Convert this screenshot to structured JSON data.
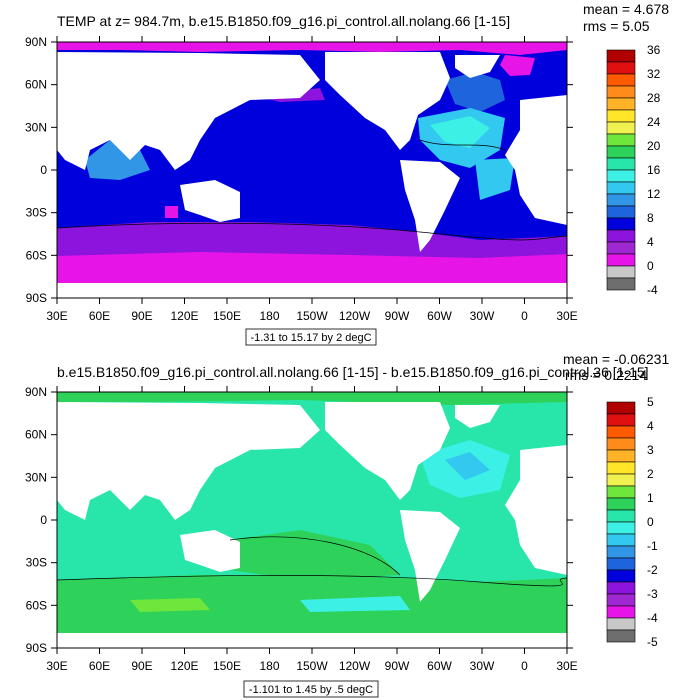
{
  "chart_data": [
    {
      "type": "heatmap",
      "title": "TEMP at z= 984.7m, b.e15.B1850.f09_g16.pi_control.all.nolang.66 [1-15]",
      "stats": {
        "mean": "mean = 4.678",
        "rms": "rms = 5.05"
      },
      "x_ticks": [
        "30E",
        "60E",
        "90E",
        "120E",
        "150E",
        "180",
        "150W",
        "120W",
        "90W",
        "60W",
        "30W",
        "0",
        "30E"
      ],
      "y_ticks": [
        "90N",
        "60N",
        "30N",
        "0",
        "30S",
        "60S",
        "90S"
      ],
      "contour_info": "-1.31 to 15.17 by 2 degC",
      "colorbar": {
        "labels": [
          "36",
          "32",
          "28",
          "24",
          "20",
          "16",
          "12",
          "8",
          "4",
          "0",
          "-4"
        ],
        "colors": [
          "#b00000",
          "#e01010",
          "#ff5a00",
          "#ff8c1a",
          "#ffb428",
          "#ffe628",
          "#f0f050",
          "#6ee63c",
          "#2ed25a",
          "#28e6aa",
          "#3cf0e6",
          "#32c8f0",
          "#3296e6",
          "#1e64dc",
          "#0000dc",
          "#8c14dc",
          "#a028d2",
          "#e614e6",
          "#c8c8c8",
          "#6e6e6e"
        ]
      }
    },
    {
      "type": "heatmap",
      "title": "b.e15.B1850.f09_g16.pi_control.all.nolang.66 [1-15] - b.e15.B1850.f09_g16.pi_control.36 [1-15]",
      "stats": {
        "mean": "mean = -0.06231",
        "rms": "rms = 0.2214"
      },
      "x_ticks": [
        "30E",
        "60E",
        "90E",
        "120E",
        "150E",
        "180",
        "150W",
        "120W",
        "90W",
        "60W",
        "30W",
        "0",
        "30E"
      ],
      "y_ticks": [
        "90N",
        "60N",
        "30N",
        "0",
        "30S",
        "60S",
        "90S"
      ],
      "contour_info": "-1.101 to 1.45 by .5 degC",
      "colorbar": {
        "labels": [
          "5",
          "4",
          "3",
          "2",
          "1",
          "0",
          "-1",
          "-2",
          "-3",
          "-4",
          "-5"
        ],
        "colors": [
          "#b00000",
          "#e01010",
          "#ff5a00",
          "#ff8c1a",
          "#ffb428",
          "#ffe628",
          "#f0f050",
          "#6ee63c",
          "#2ed25a",
          "#28e6aa",
          "#3cf0e6",
          "#32c8f0",
          "#3296e6",
          "#1e64dc",
          "#0000dc",
          "#8c14dc",
          "#a028d2",
          "#e614e6",
          "#c8c8c8",
          "#6e6e6e"
        ]
      }
    }
  ]
}
